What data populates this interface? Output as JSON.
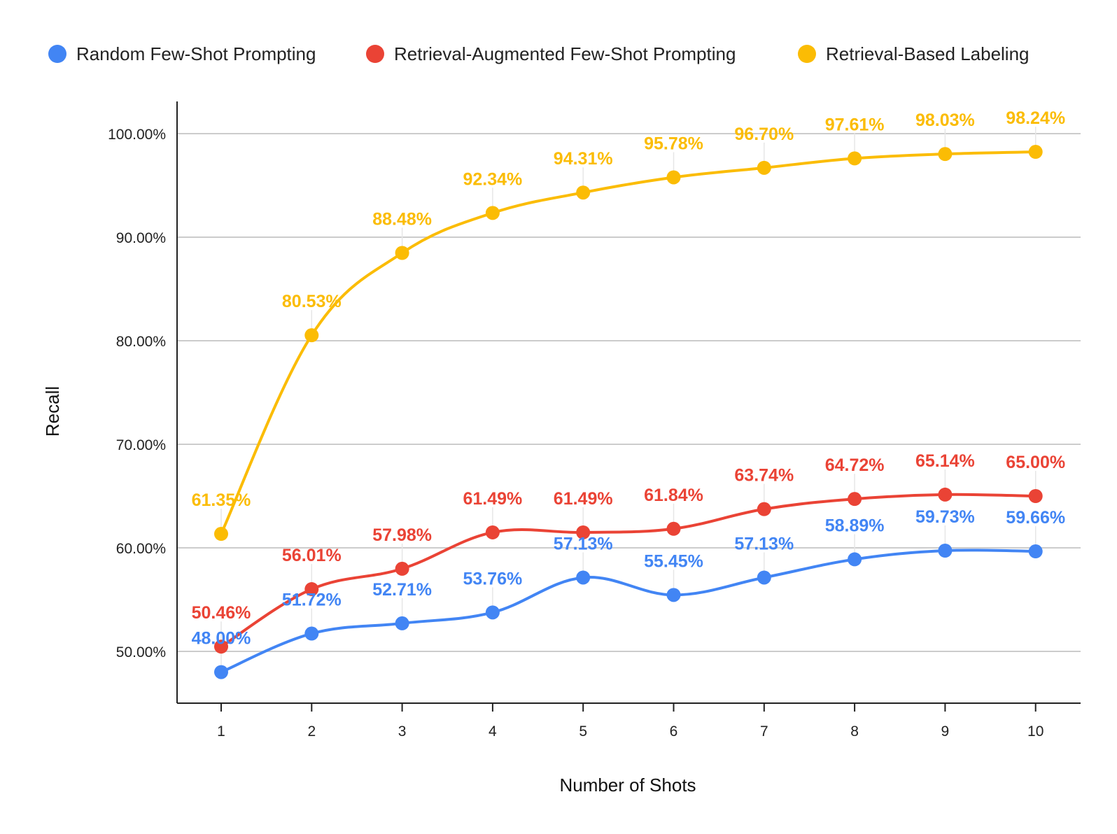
{
  "chart_data": {
    "type": "line",
    "title": "",
    "xlabel": "Number of Shots",
    "ylabel": "Recall",
    "x": [
      1,
      2,
      3,
      4,
      5,
      6,
      7,
      8,
      9,
      10
    ],
    "x_tick_labels": [
      "1",
      "2",
      "3",
      "4",
      "5",
      "6",
      "7",
      "8",
      "9",
      "10"
    ],
    "ylim": [
      45,
      103
    ],
    "y_ticks": [
      50,
      60,
      70,
      80,
      90,
      100
    ],
    "y_tick_labels": [
      "50.00%",
      "60.00%",
      "70.00%",
      "80.00%",
      "90.00%",
      "100.00%"
    ],
    "grid": true,
    "legend_position": "top",
    "series": [
      {
        "name": "Random Few-Shot Prompting",
        "color": "#4285F4",
        "values": [
          48.0,
          51.72,
          52.71,
          53.76,
          57.13,
          55.45,
          57.13,
          58.89,
          59.73,
          59.66
        ],
        "labels": [
          "48.00%",
          "51.72%",
          "52.71%",
          "53.76%",
          "57.13%",
          "55.45%",
          "57.13%",
          "58.89%",
          "59.73%",
          "59.66%"
        ]
      },
      {
        "name": "Retrieval-Augmented Few-Shot Prompting",
        "color": "#EA4335",
        "values": [
          50.46,
          56.01,
          57.98,
          61.49,
          61.49,
          61.84,
          63.74,
          64.72,
          65.14,
          65.0
        ],
        "labels": [
          "50.46%",
          "56.01%",
          "57.98%",
          "61.49%",
          "61.49%",
          "61.84%",
          "63.74%",
          "64.72%",
          "65.14%",
          "65.00%"
        ]
      },
      {
        "name": "Retrieval-Based Labeling",
        "color": "#FBBC04",
        "values": [
          61.35,
          80.53,
          88.48,
          92.34,
          94.31,
          95.78,
          96.7,
          97.61,
          98.03,
          98.24
        ],
        "labels": [
          "61.35%",
          "80.53%",
          "88.48%",
          "92.34%",
          "94.31%",
          "95.78%",
          "96.70%",
          "97.61%",
          "98.03%",
          "98.24%"
        ]
      }
    ]
  }
}
